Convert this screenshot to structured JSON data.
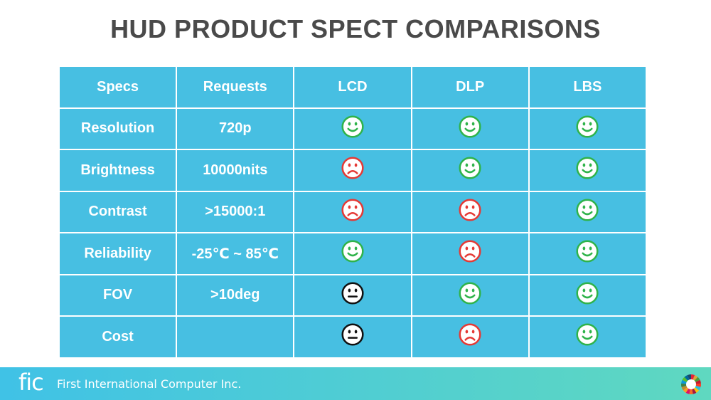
{
  "title": "HUD PRODUCT SPECT COMPARISONS",
  "table": {
    "headers": [
      "Specs",
      "Requests",
      "LCD",
      "DLP",
      "LBS"
    ],
    "rows": [
      {
        "spec": "Resolution",
        "request": "720p",
        "ratings": [
          "happy",
          "happy",
          "happy"
        ]
      },
      {
        "spec": "Brightness",
        "request": "10000nits",
        "ratings": [
          "sad",
          "happy",
          "happy"
        ]
      },
      {
        "spec": "Contrast",
        "request": ">15000:1",
        "ratings": [
          "sad",
          "sad",
          "happy"
        ]
      },
      {
        "spec": "Reliability",
        "request": "-25℃ ~ 85℃",
        "ratings": [
          "happy",
          "sad",
          "happy"
        ]
      },
      {
        "spec": "FOV",
        "request": ">10deg",
        "ratings": [
          "neutral",
          "happy",
          "happy"
        ]
      },
      {
        "spec": "Cost",
        "request": "",
        "ratings": [
          "neutral",
          "sad",
          "happy"
        ]
      }
    ]
  },
  "footer": {
    "logo": "fic",
    "company": "First International Computer Inc."
  },
  "colors": {
    "table_bg": "#47bfe2",
    "happy": "#2fb34a",
    "sad": "#e53935",
    "neutral": "#111111",
    "title": "#4a4a4a"
  },
  "icons": {
    "happy": "smiley-face-icon",
    "sad": "frowning-face-icon",
    "neutral": "neutral-face-icon",
    "sdg": "sdg-wheel-icon"
  }
}
